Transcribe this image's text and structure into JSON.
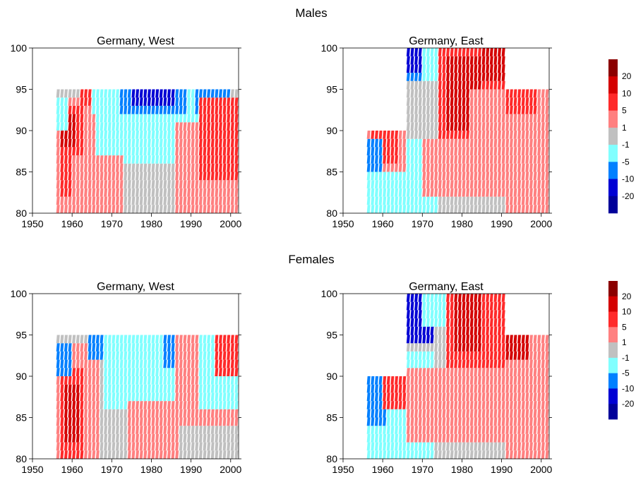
{
  "figure": {
    "sections": [
      {
        "title": "Males"
      },
      {
        "title": "Females"
      }
    ]
  },
  "legend": {
    "labels": [
      "20",
      "10",
      "5",
      "1",
      "-1",
      "-5",
      "-10",
      "-20"
    ],
    "colors": [
      "#8b0000",
      "#d40000",
      "#ff2a2a",
      "#ff8080",
      "#c0c0c0",
      "#80ffff",
      "#0080ff",
      "#0000d4",
      "#00009a"
    ]
  },
  "chart_data": [
    {
      "type": "heatmap",
      "title": "Germany, West",
      "section": "Males",
      "xlim": [
        1950,
        2002
      ],
      "ylim": [
        80,
        100
      ],
      "xticks": [
        1950,
        1960,
        1970,
        1980,
        1990,
        2000
      ],
      "yticks": [
        80,
        85,
        90,
        95,
        100
      ],
      "cohort_start_year": 1956,
      "cohort_end_year": 2001,
      "age_top": 95,
      "regions": [
        {
          "x": [
            1956,
            2001
          ],
          "y": [
            80,
            95
          ],
          "level": "-1"
        },
        {
          "x": [
            1956,
            1972
          ],
          "y": [
            80,
            88
          ],
          "level": "1"
        },
        {
          "x": [
            1956,
            1966
          ],
          "y": [
            87,
            93
          ],
          "level": "1"
        },
        {
          "x": [
            1957,
            1962
          ],
          "y": [
            82,
            92
          ],
          "level": "5"
        },
        {
          "x": [
            1957,
            1960
          ],
          "y": [
            88,
            91
          ],
          "level": "10"
        },
        {
          "x": [
            1956,
            1958
          ],
          "y": [
            90,
            93
          ],
          "level": "-5"
        },
        {
          "x": [
            1966,
            1990
          ],
          "y": [
            86,
            94
          ],
          "level": "-5"
        },
        {
          "x": [
            1972,
            1988
          ],
          "y": [
            92,
            95
          ],
          "level": "-10"
        },
        {
          "x": [
            1975,
            1985
          ],
          "y": [
            93,
            95
          ],
          "level": "-20"
        },
        {
          "x": [
            1990,
            1998
          ],
          "y": [
            88,
            94
          ],
          "level": "-5"
        },
        {
          "x": [
            1991,
            1999
          ],
          "y": [
            92,
            95
          ],
          "level": "-10"
        },
        {
          "x": [
            1962,
            1967
          ],
          "y": [
            93,
            95
          ],
          "level": "5"
        },
        {
          "x": [
            1965,
            1969
          ],
          "y": [
            92,
            95
          ],
          "level": "-5"
        },
        {
          "x": [
            1960,
            1972
          ],
          "y": [
            80,
            86
          ],
          "level": "1"
        },
        {
          "x": [
            1986,
            2001
          ],
          "y": [
            80,
            90
          ],
          "level": "1"
        },
        {
          "x": [
            1992,
            2001
          ],
          "y": [
            84,
            93
          ],
          "level": "5"
        }
      ]
    },
    {
      "type": "heatmap",
      "title": "Germany, East",
      "section": "Males",
      "xlim": [
        1950,
        2002
      ],
      "ylim": [
        80,
        100
      ],
      "xticks": [
        1950,
        1960,
        1970,
        1980,
        1990,
        2000
      ],
      "yticks": [
        80,
        85,
        90,
        95,
        100
      ],
      "cohort_start_year": 1956,
      "cohort_end_year": 2001,
      "age_top_by_period": [
        [
          1956,
          1965,
          90
        ],
        [
          1966,
          1990,
          100
        ],
        [
          1991,
          2001,
          95
        ]
      ],
      "regions": [
        {
          "x": [
            1956,
            2001
          ],
          "y": [
            80,
            100
          ],
          "level": "-1"
        },
        {
          "x": [
            1956,
            1966
          ],
          "y": [
            80,
            86
          ],
          "level": "-5"
        },
        {
          "x": [
            1956,
            1965
          ],
          "y": [
            85,
            90
          ],
          "level": "1"
        },
        {
          "x": [
            1957,
            1963
          ],
          "y": [
            86,
            90
          ],
          "level": "5"
        },
        {
          "x": [
            1956,
            1959
          ],
          "y": [
            85,
            88
          ],
          "level": "-10"
        },
        {
          "x": [
            1966,
            1973
          ],
          "y": [
            80,
            88
          ],
          "level": "-5"
        },
        {
          "x": [
            1966,
            1975
          ],
          "y": [
            96,
            100
          ],
          "level": "-10"
        },
        {
          "x": [
            1966,
            1969
          ],
          "y": [
            97,
            100
          ],
          "level": "-20"
        },
        {
          "x": [
            1970,
            1978
          ],
          "y": [
            96,
            99
          ],
          "level": "-5"
        },
        {
          "x": [
            1974,
            1990
          ],
          "y": [
            88,
            99
          ],
          "level": "5"
        },
        {
          "x": [
            1976,
            1984
          ],
          "y": [
            90,
            98
          ],
          "level": "10"
        },
        {
          "x": [
            1982,
            1990
          ],
          "y": [
            82,
            94
          ],
          "level": "1"
        },
        {
          "x": [
            1985,
            1990
          ],
          "y": [
            96,
            100
          ],
          "level": "10"
        },
        {
          "x": [
            1991,
            2001
          ],
          "y": [
            80,
            95
          ],
          "level": "1"
        },
        {
          "x": [
            1991,
            1998
          ],
          "y": [
            92,
            95
          ],
          "level": "5"
        },
        {
          "x": [
            1970,
            1982
          ],
          "y": [
            82,
            88
          ],
          "level": "1"
        }
      ]
    },
    {
      "type": "heatmap",
      "title": "Germany, West",
      "section": "Females",
      "xlim": [
        1950,
        2002
      ],
      "ylim": [
        80,
        100
      ],
      "xticks": [
        1950,
        1960,
        1970,
        1980,
        1990,
        2000
      ],
      "yticks": [
        80,
        85,
        90,
        95,
        100
      ],
      "cohort_start_year": 1956,
      "cohort_end_year": 2001,
      "age_top": 95,
      "regions": [
        {
          "x": [
            1956,
            2001
          ],
          "y": [
            80,
            95
          ],
          "level": "-1"
        },
        {
          "x": [
            1956,
            1966
          ],
          "y": [
            80,
            93
          ],
          "level": "1"
        },
        {
          "x": [
            1957,
            1962
          ],
          "y": [
            80,
            90
          ],
          "level": "5"
        },
        {
          "x": [
            1958,
            1961
          ],
          "y": [
            82,
            88
          ],
          "level": "10"
        },
        {
          "x": [
            1956,
            1959
          ],
          "y": [
            90,
            93
          ],
          "level": "-10"
        },
        {
          "x": [
            1964,
            1968
          ],
          "y": [
            92,
            95
          ],
          "level": "-10"
        },
        {
          "x": [
            1968,
            1986
          ],
          "y": [
            86,
            95
          ],
          "level": "-5"
        },
        {
          "x": [
            1974,
            1986
          ],
          "y": [
            80,
            86
          ],
          "level": "1"
        },
        {
          "x": [
            1986,
            2001
          ],
          "y": [
            84,
            95
          ],
          "level": "1"
        },
        {
          "x": [
            1992,
            2001
          ],
          "y": [
            86,
            95
          ],
          "level": "-5"
        },
        {
          "x": [
            1996,
            2001
          ],
          "y": [
            90,
            94
          ],
          "level": "5"
        },
        {
          "x": [
            1983,
            1985
          ],
          "y": [
            91,
            94
          ],
          "level": "-10"
        }
      ]
    },
    {
      "type": "heatmap",
      "title": "Germany, East",
      "section": "Females",
      "xlim": [
        1950,
        2002
      ],
      "ylim": [
        80,
        100
      ],
      "xticks": [
        1950,
        1960,
        1970,
        1980,
        1990,
        2000
      ],
      "yticks": [
        80,
        85,
        90,
        95,
        100
      ],
      "cohort_start_year": 1956,
      "cohort_end_year": 2001,
      "age_top_by_period": [
        [
          1956,
          1965,
          90
        ],
        [
          1966,
          1990,
          100
        ],
        [
          1991,
          2001,
          95
        ]
      ],
      "regions": [
        {
          "x": [
            1956,
            2001
          ],
          "y": [
            80,
            100
          ],
          "level": "-1"
        },
        {
          "x": [
            1956,
            1972
          ],
          "y": [
            80,
            92
          ],
          "level": "-5"
        },
        {
          "x": [
            1956,
            1960
          ],
          "y": [
            84,
            90
          ],
          "level": "-10"
        },
        {
          "x": [
            1960,
            1965
          ],
          "y": [
            86,
            90
          ],
          "level": "5"
        },
        {
          "x": [
            1966,
            1972
          ],
          "y": [
            94,
            100
          ],
          "level": "-20"
        },
        {
          "x": [
            1970,
            1978
          ],
          "y": [
            96,
            100
          ],
          "level": "-5"
        },
        {
          "x": [
            1976,
            1990
          ],
          "y": [
            90,
            100
          ],
          "level": "5"
        },
        {
          "x": [
            1978,
            1984
          ],
          "y": [
            93,
            99
          ],
          "level": "10"
        },
        {
          "x": [
            1966,
            1990
          ],
          "y": [
            82,
            90
          ],
          "level": "1"
        },
        {
          "x": [
            1991,
            2001
          ],
          "y": [
            80,
            95
          ],
          "level": "1"
        },
        {
          "x": [
            1991,
            1996
          ],
          "y": [
            92,
            95
          ],
          "level": "10"
        }
      ]
    }
  ]
}
